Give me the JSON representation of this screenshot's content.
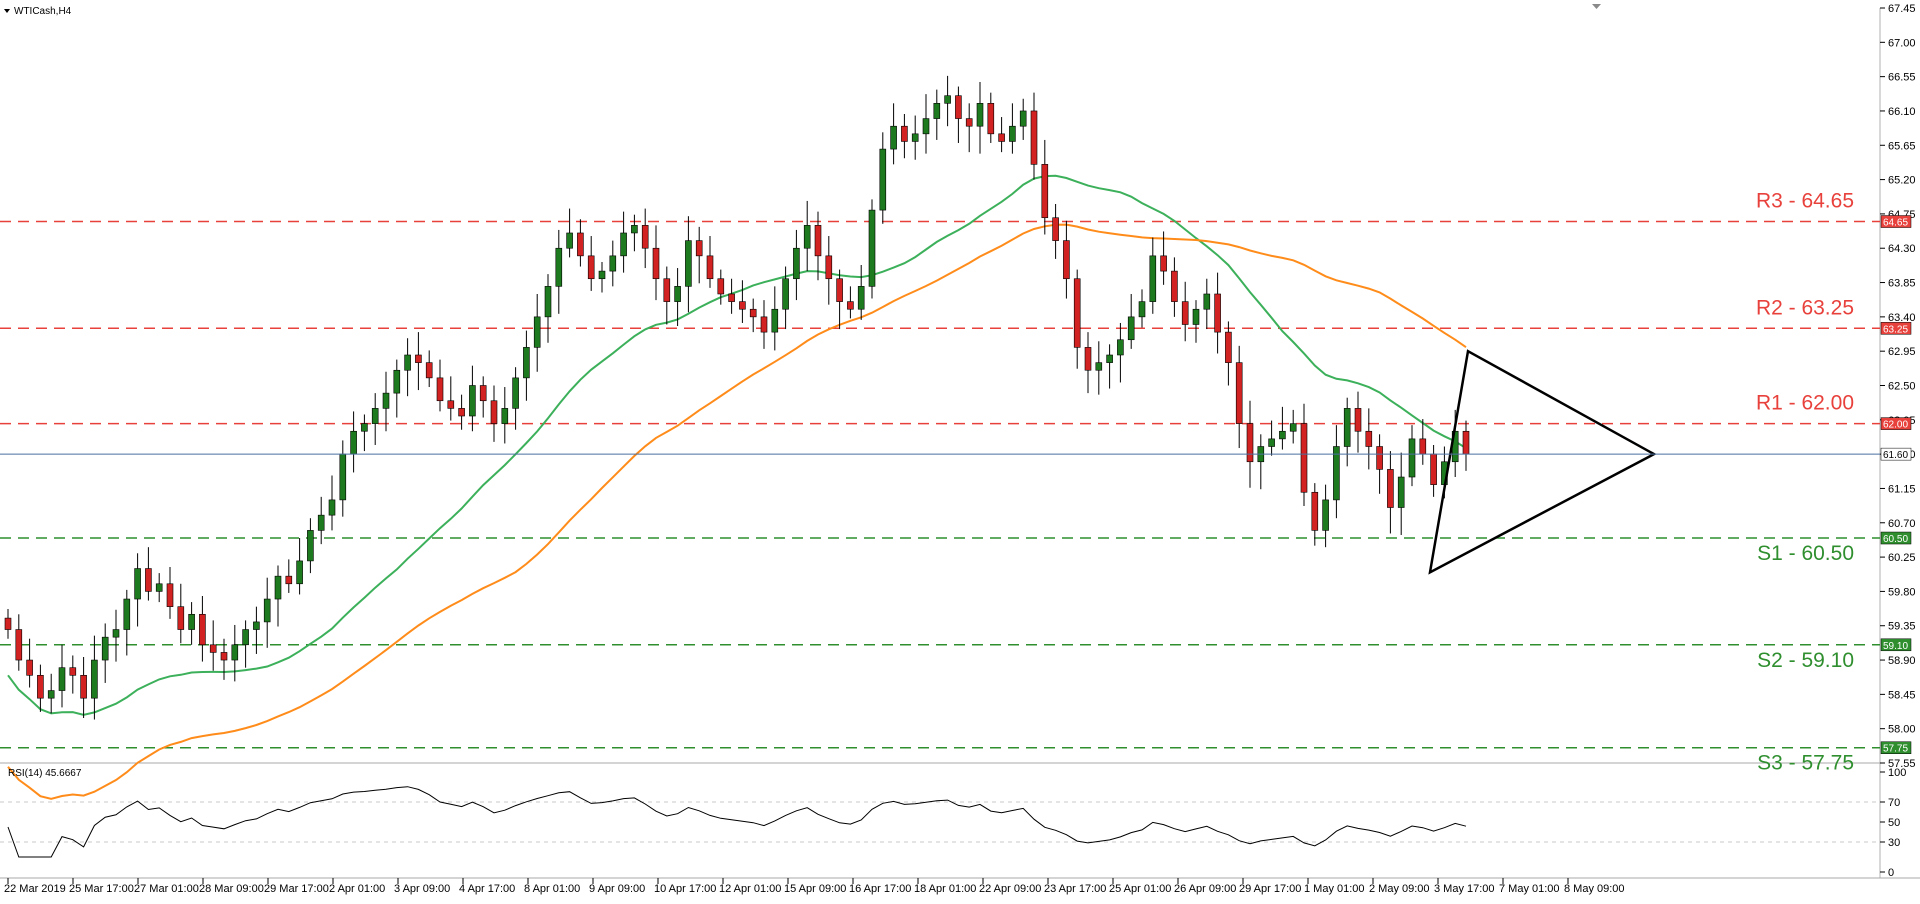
{
  "chart_data": {
    "type": "candlestick",
    "title": "WTICash,H4",
    "colors": {
      "bull": "#1e7a1e",
      "bear": "#d22222",
      "sma_fast": "#3cb05a",
      "sma_slow": "#ff8c1a",
      "resistance": "#e8413c",
      "support": "#2f8f2f",
      "current_price": "#4a6fa0",
      "triangle": "#000000"
    },
    "price_axis": {
      "ticks": [
        "67.45",
        "67.00",
        "66.55",
        "66.10",
        "65.65",
        "65.20",
        "64.75",
        "64.30",
        "63.85",
        "63.40",
        "62.95",
        "62.50",
        "62.05",
        "61.60",
        "61.15",
        "60.70",
        "60.25",
        "59.80",
        "59.35",
        "58.90",
        "58.45",
        "58.00",
        "57.55"
      ],
      "ylim": [
        57.55,
        67.45
      ]
    },
    "current_price": {
      "label": "61.60",
      "value": 61.6
    },
    "levels": [
      {
        "name": "R3 - 64.65",
        "badge": "64.65",
        "value": 64.65,
        "kind": "resistance"
      },
      {
        "name": "R2 - 63.25",
        "badge": "63.25",
        "value": 63.25,
        "kind": "resistance"
      },
      {
        "name": "R1 - 62.00",
        "badge": "62.00",
        "value": 62.0,
        "kind": "resistance"
      },
      {
        "name": "S1 - 60.50",
        "badge": "60.50",
        "value": 60.5,
        "kind": "support"
      },
      {
        "name": "S2 - 59.10",
        "badge": "59.10",
        "value": 59.1,
        "kind": "support"
      },
      {
        "name": "S3 - 57.75",
        "badge": "57.75",
        "value": 57.75,
        "kind": "support"
      }
    ],
    "time_axis": [
      "22 Mar 2019",
      "25 Mar 17:00",
      "27 Mar 01:00",
      "28 Mar 09:00",
      "29 Mar 17:00",
      "2 Apr 01:00",
      "3 Apr 09:00",
      "4 Apr 17:00",
      "8 Apr 01:00",
      "9 Apr 09:00",
      "10 Apr 17:00",
      "12 Apr 01:00",
      "15 Apr 09:00",
      "16 Apr 17:00",
      "18 Apr 01:00",
      "22 Apr 09:00",
      "23 Apr 17:00",
      "25 Apr 01:00",
      "26 Apr 09:00",
      "29 Apr 17:00",
      "1 May 01:00",
      "2 May 09:00",
      "3 May 17:00",
      "7 May 01:00",
      "8 May 09:00"
    ],
    "closes": [
      59.3,
      58.9,
      58.7,
      58.4,
      58.5,
      58.8,
      58.7,
      58.4,
      58.9,
      59.2,
      59.3,
      59.7,
      60.1,
      59.8,
      59.9,
      59.6,
      59.3,
      59.5,
      59.1,
      59.0,
      58.9,
      59.1,
      59.3,
      59.4,
      59.7,
      60.0,
      59.9,
      60.2,
      60.6,
      60.8,
      61.0,
      61.6,
      61.9,
      62.0,
      62.2,
      62.4,
      62.7,
      62.9,
      62.8,
      62.6,
      62.3,
      62.2,
      62.1,
      62.5,
      62.3,
      62.0,
      62.2,
      62.6,
      63.0,
      63.4,
      63.8,
      64.3,
      64.5,
      64.2,
      63.9,
      64.0,
      64.2,
      64.5,
      64.6,
      64.3,
      63.9,
      63.6,
      63.8,
      64.4,
      64.2,
      63.9,
      63.7,
      63.6,
      63.5,
      63.4,
      63.2,
      63.5,
      63.9,
      64.3,
      64.6,
      64.2,
      63.9,
      63.6,
      63.5,
      63.8,
      64.8,
      65.6,
      65.9,
      65.7,
      65.8,
      66.0,
      66.2,
      66.3,
      66.0,
      65.9,
      66.2,
      65.8,
      65.7,
      65.9,
      66.1,
      65.4,
      64.7,
      64.4,
      63.9,
      63.0,
      62.7,
      62.8,
      62.9,
      63.1,
      63.4,
      63.6,
      64.2,
      64.0,
      63.6,
      63.3,
      63.5,
      63.7,
      63.2,
      62.8,
      62.0,
      61.5,
      61.7,
      61.8,
      61.9,
      62.0,
      61.1,
      60.6,
      61.0,
      61.7,
      62.2,
      61.9,
      61.7,
      61.4,
      60.9,
      61.3,
      61.8,
      61.6,
      61.2,
      61.5,
      61.9,
      61.6
    ]
  }
}
